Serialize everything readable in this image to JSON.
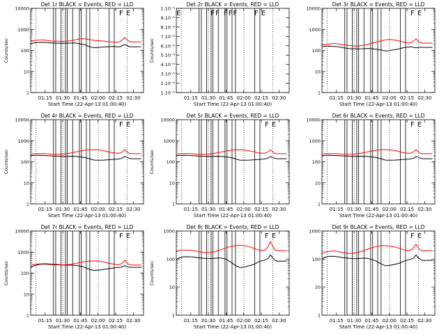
{
  "chart_data": {
    "type": "line",
    "layout": "3x3 grid of log-scale rate plots",
    "xlabel": "Start Time (22-Apr-13 01:00:40)",
    "ylabel": "Counts/sec",
    "x_units": "minutes after 01:00:40",
    "xlim": [
      2.0,
      98.0
    ],
    "x_tick_values": [
      14.33,
      29.33,
      44.33,
      59.33,
      74.33,
      89.33
    ],
    "x_tick_labels": [
      "01:15",
      "01:30",
      "01:45",
      "02:00",
      "02:15",
      "02:30"
    ],
    "dotted_lines_x": [
      6.5,
      29.3,
      59.5,
      84.0
    ],
    "events_legend": "BLACK = Events",
    "lld_legend": "RED = LLD",
    "series_colors": {
      "events": "#000000",
      "lld": "#ff0000"
    },
    "x": [
      0,
      4,
      8,
      12,
      16,
      20,
      24,
      28,
      32,
      36,
      40,
      44,
      48,
      52,
      56,
      60,
      64,
      68,
      72,
      76,
      78,
      80,
      82,
      84,
      86,
      88,
      92,
      96
    ],
    "panels": [
      {
        "title": "Det 1r BLACK = Events, RED = LLD",
        "ylim": [
          1,
          10000
        ],
        "y_tick_values": [
          1,
          10,
          100,
          1000,
          10000
        ],
        "y_tick_labels": [
          "1",
          "10",
          "100",
          "1000",
          "10000"
        ],
        "show_ylabel": true,
        "spikes_x": [
          21.4,
          23.3,
          27.8,
          31.6,
          33.2,
          37.7,
          43.4,
          45.1,
          49.4,
          52.3,
          68.6,
          73.1
        ],
        "flags": [
          {
            "x": 79,
            "label": "F"
          },
          {
            "x": 85,
            "label": "E"
          }
        ],
        "series": [
          {
            "name": "Events",
            "values": [
              210,
              225,
              240,
              245,
              235,
              225,
              220,
              218,
              220,
              222,
              225,
              205,
              190,
              150,
              135,
              140,
              145,
              150,
              155,
              150,
              150,
              170,
              190,
              170,
              150,
              150,
              150,
              150
            ]
          },
          {
            "name": "LLD",
            "values": [
              270,
              290,
              310,
              320,
              300,
              280,
              275,
              270,
              275,
              290,
              320,
              360,
              360,
              330,
              300,
              290,
              280,
              260,
              250,
              250,
              260,
              320,
              420,
              320,
              260,
              255,
              255,
              255
            ]
          }
        ]
      },
      {
        "title": "Det 2r BLACK = Events, RED = LLD",
        "ylim": [
          1e-06,
          1e-05
        ],
        "y_tick_values": [
          1e-06,
          2e-06,
          3e-06,
          4e-06,
          5e-06,
          6e-06,
          7e-06,
          8e-06,
          9e-06,
          1e-05
        ],
        "y_tick_labels": [
          "1.10⁻⁶",
          "2.10⁻⁶",
          "3.10⁻⁶",
          "4.10⁻⁶",
          "5.10⁻⁶",
          "6.10⁻⁶",
          "7.10⁻⁶",
          "8.10⁻⁶",
          "9.10⁻⁶",
          "1.10⁻⁵"
        ],
        "show_ylabel": true,
        "spikes_x": [
          21.4,
          23.3,
          27.8,
          31.6,
          33.2,
          37.7,
          43.4,
          45.1,
          49.4,
          52.3,
          68.6,
          73.1
        ],
        "flags": [
          {
            "x": 4,
            "label": "E"
          },
          {
            "x": 33,
            "label": "F"
          },
          {
            "x": 37,
            "label": "F"
          },
          {
            "x": 44,
            "label": "F"
          },
          {
            "x": 48,
            "label": "F"
          },
          {
            "x": 52,
            "label": "F"
          },
          {
            "x": 70,
            "label": "F"
          },
          {
            "x": 76,
            "label": "E"
          }
        ],
        "series": []
      },
      {
        "title": "Det 3r BLACK = Events, RED = LLD",
        "ylim": [
          1,
          10000
        ],
        "y_tick_values": [
          1,
          10,
          100,
          1000,
          10000
        ],
        "y_tick_labels": [
          "1",
          "10",
          "100",
          "1000",
          "10000"
        ],
        "show_ylabel": false,
        "spikes_x": [
          21.4,
          23.3,
          27.8,
          31.6,
          33.2,
          37.7,
          43.4,
          45.1,
          49.4,
          52.3,
          68.6,
          73.1
        ],
        "flags": [
          {
            "x": 79,
            "label": "F"
          },
          {
            "x": 85,
            "label": "E"
          }
        ],
        "series": [
          {
            "name": "Events",
            "values": [
              150,
              158,
              160,
              155,
              148,
              135,
              125,
              120,
              118,
              120,
              125,
              122,
              115,
              105,
              95,
              100,
              110,
              120,
              140,
              145,
              150,
              140,
              135,
              138,
              142,
              140,
              140,
              140
            ]
          },
          {
            "name": "LLD",
            "values": [
              185,
              190,
              200,
              215,
              205,
              190,
              175,
              165,
              160,
              170,
              190,
              215,
              250,
              280,
              320,
              330,
              310,
              280,
              250,
              220,
              240,
              280,
              360,
              270,
              230,
              222,
              222,
              222
            ]
          }
        ]
      },
      {
        "title": "Det 4r BLACK = Events, RED = LLD",
        "ylim": [
          1,
          10000
        ],
        "y_tick_values": [
          1,
          10,
          100,
          1000,
          10000
        ],
        "y_tick_labels": [
          "1",
          "10",
          "100",
          "1000",
          "10000"
        ],
        "show_ylabel": true,
        "spikes_x": [
          21.4,
          23.3,
          27.8,
          31.6,
          33.2,
          37.7,
          43.4,
          45.1,
          49.4,
          52.3,
          68.6,
          73.1
        ],
        "flags": [
          {
            "x": 79,
            "label": "F"
          },
          {
            "x": 85,
            "label": "E"
          }
        ],
        "series": [
          {
            "name": "Events",
            "values": [
              185,
              200,
              205,
              200,
              195,
              190,
              185,
              182,
              180,
              182,
              180,
              170,
              160,
              140,
              120,
              118,
              120,
              125,
              130,
              135,
              140,
              150,
              180,
              160,
              145,
              140,
              140,
              140
            ]
          },
          {
            "name": "LLD",
            "values": [
              230,
              240,
              245,
              245,
              240,
              230,
              228,
              230,
              240,
              260,
              290,
              320,
              350,
              370,
              380,
              370,
              340,
              300,
              270,
              250,
              260,
              300,
              380,
              290,
              250,
              242,
              242,
              242
            ]
          }
        ]
      },
      {
        "title": "Det 5r BLACK = Events, RED = LLD",
        "ylim": [
          1,
          10000
        ],
        "y_tick_values": [
          1,
          10,
          100,
          1000,
          10000
        ],
        "y_tick_labels": [
          "1",
          "10",
          "100",
          "1000",
          "10000"
        ],
        "show_ylabel": true,
        "spikes_x": [
          21.4,
          23.3,
          27.8,
          31.6,
          33.2,
          37.7,
          43.4,
          45.1,
          49.4,
          52.3,
          68.6,
          73.1
        ],
        "flags": [
          {
            "x": 79,
            "label": "F"
          },
          {
            "x": 85,
            "label": "E"
          }
        ],
        "series": [
          {
            "name": "Events",
            "values": [
              190,
              200,
              205,
              200,
              195,
              190,
              185,
              182,
              180,
              182,
              180,
              170,
              160,
              140,
              120,
              118,
              120,
              125,
              130,
              135,
              140,
              150,
              175,
              160,
              145,
              140,
              140,
              140
            ]
          },
          {
            "name": "LLD",
            "values": [
              230,
              240,
              245,
              245,
              240,
              230,
              228,
              230,
              240,
              260,
              290,
              320,
              350,
              370,
              370,
              360,
              330,
              300,
              270,
              250,
              260,
              300,
              370,
              290,
              250,
              242,
              242,
              242
            ]
          }
        ]
      },
      {
        "title": "Det 6r BLACK = Events, RED = LLD",
        "ylim": [
          1,
          10000
        ],
        "y_tick_values": [
          1,
          10,
          100,
          1000,
          10000
        ],
        "y_tick_labels": [
          "1",
          "10",
          "100",
          "1000",
          "10000"
        ],
        "show_ylabel": false,
        "spikes_x": [
          21.4,
          23.3,
          27.8,
          31.6,
          33.2,
          37.7,
          43.4,
          45.1,
          49.4,
          52.3,
          68.6,
          73.1
        ],
        "flags": [
          {
            "x": 79,
            "label": "F"
          },
          {
            "x": 85,
            "label": "E"
          }
        ],
        "series": [
          {
            "name": "Events",
            "values": [
              185,
              200,
              205,
              200,
              195,
              190,
              185,
              182,
              180,
              182,
              180,
              170,
              160,
              140,
              120,
              118,
              120,
              125,
              130,
              135,
              140,
              150,
              180,
              160,
              145,
              140,
              140,
              140
            ]
          },
          {
            "name": "LLD",
            "values": [
              230,
              240,
              245,
              245,
              240,
              230,
              228,
              230,
              240,
              260,
              290,
              320,
              350,
              370,
              380,
              370,
              340,
              300,
              270,
              250,
              260,
              300,
              380,
              290,
              250,
              242,
              242,
              242
            ]
          }
        ]
      },
      {
        "title": "Det 7r BLACK = Events, RED = LLD",
        "ylim": [
          1,
          10000
        ],
        "y_tick_values": [
          1,
          10,
          100,
          1000,
          10000
        ],
        "y_tick_labels": [
          "1",
          "10",
          "100",
          "1000",
          "10000"
        ],
        "show_ylabel": true,
        "spikes_x": [
          21.4,
          23.3,
          27.8,
          31.6,
          33.2,
          37.7,
          43.4,
          45.1,
          49.4,
          52.3,
          68.6,
          73.1
        ],
        "flags": [
          {
            "x": 79,
            "label": "F"
          },
          {
            "x": 85,
            "label": "E"
          }
        ],
        "series": [
          {
            "name": "Events",
            "values": [
              180,
              215,
              250,
              270,
              265,
              255,
              250,
              245,
              240,
              240,
              235,
              215,
              190,
              150,
              135,
              140,
              150,
              160,
              175,
              185,
              190,
              200,
              230,
              200,
              190,
              190,
              190,
              190
            ]
          },
          {
            "name": "LLD",
            "values": [
              230,
              250,
              270,
              280,
              280,
              270,
              260,
              250,
              250,
              260,
              290,
              320,
              350,
              370,
              380,
              370,
              340,
              300,
              270,
              250,
              260,
              300,
              420,
              300,
              250,
              242,
              242,
              242
            ]
          }
        ]
      },
      {
        "title": "Det 8r BLACK = Events, RED = LLD",
        "ylim": [
          1,
          1000
        ],
        "y_tick_values": [
          1,
          10,
          100,
          1000
        ],
        "y_tick_labels": [
          "1",
          "10",
          "100",
          "1000"
        ],
        "show_ylabel": true,
        "spikes_x": [
          21.4,
          23.3,
          27.8,
          31.6,
          33.2,
          37.7,
          43.4,
          45.1,
          49.4,
          52.3,
          68.6,
          73.1
        ],
        "flags": [
          {
            "x": 79,
            "label": "F"
          },
          {
            "x": 85,
            "label": "E"
          }
        ],
        "series": [
          {
            "name": "Events",
            "values": [
              95,
              110,
              120,
              122,
              118,
              112,
              108,
              105,
              105,
              108,
              110,
              100,
              80,
              60,
              50,
              52,
              58,
              65,
              80,
              90,
              95,
              105,
              140,
              110,
              90,
              85,
              85,
              85
            ]
          },
          {
            "name": "LLD",
            "values": [
              180,
              200,
              210,
              205,
              200,
              190,
              175,
              170,
              175,
              190,
              215,
              250,
              280,
              300,
              310,
              300,
              280,
              240,
              210,
              200,
              220,
              280,
              420,
              280,
              210,
              200,
              200,
              200
            ]
          }
        ]
      },
      {
        "title": "Det 9r BLACK = Events, RED = LLD",
        "ylim": [
          1,
          1000
        ],
        "y_tick_values": [
          1,
          10,
          100,
          1000
        ],
        "y_tick_labels": [
          "1",
          "10",
          "100",
          "1000"
        ],
        "show_ylabel": false,
        "spikes_x": [
          21.4,
          23.3,
          27.8,
          31.6,
          33.2,
          37.7,
          43.4,
          45.1,
          49.4,
          52.3,
          68.6,
          73.1
        ],
        "flags": [
          {
            "x": 79,
            "label": "F"
          },
          {
            "x": 85,
            "label": "E"
          }
        ],
        "series": [
          {
            "name": "Events",
            "values": [
              100,
              115,
              125,
              125,
              120,
              112,
              108,
              104,
              104,
              106,
              108,
              98,
              85,
              68,
              58,
              60,
              65,
              72,
              85,
              95,
              100,
              110,
              140,
              110,
              95,
              90,
              90,
              90
            ]
          },
          {
            "name": "LLD",
            "values": [
              150,
              175,
              190,
              195,
              185,
              170,
              160,
              160,
              170,
              190,
              220,
              250,
              280,
              300,
              300,
              290,
              270,
              240,
              210,
              200,
              215,
              260,
              340,
              250,
              210,
              200,
              200,
              200
            ]
          }
        ]
      }
    ]
  }
}
